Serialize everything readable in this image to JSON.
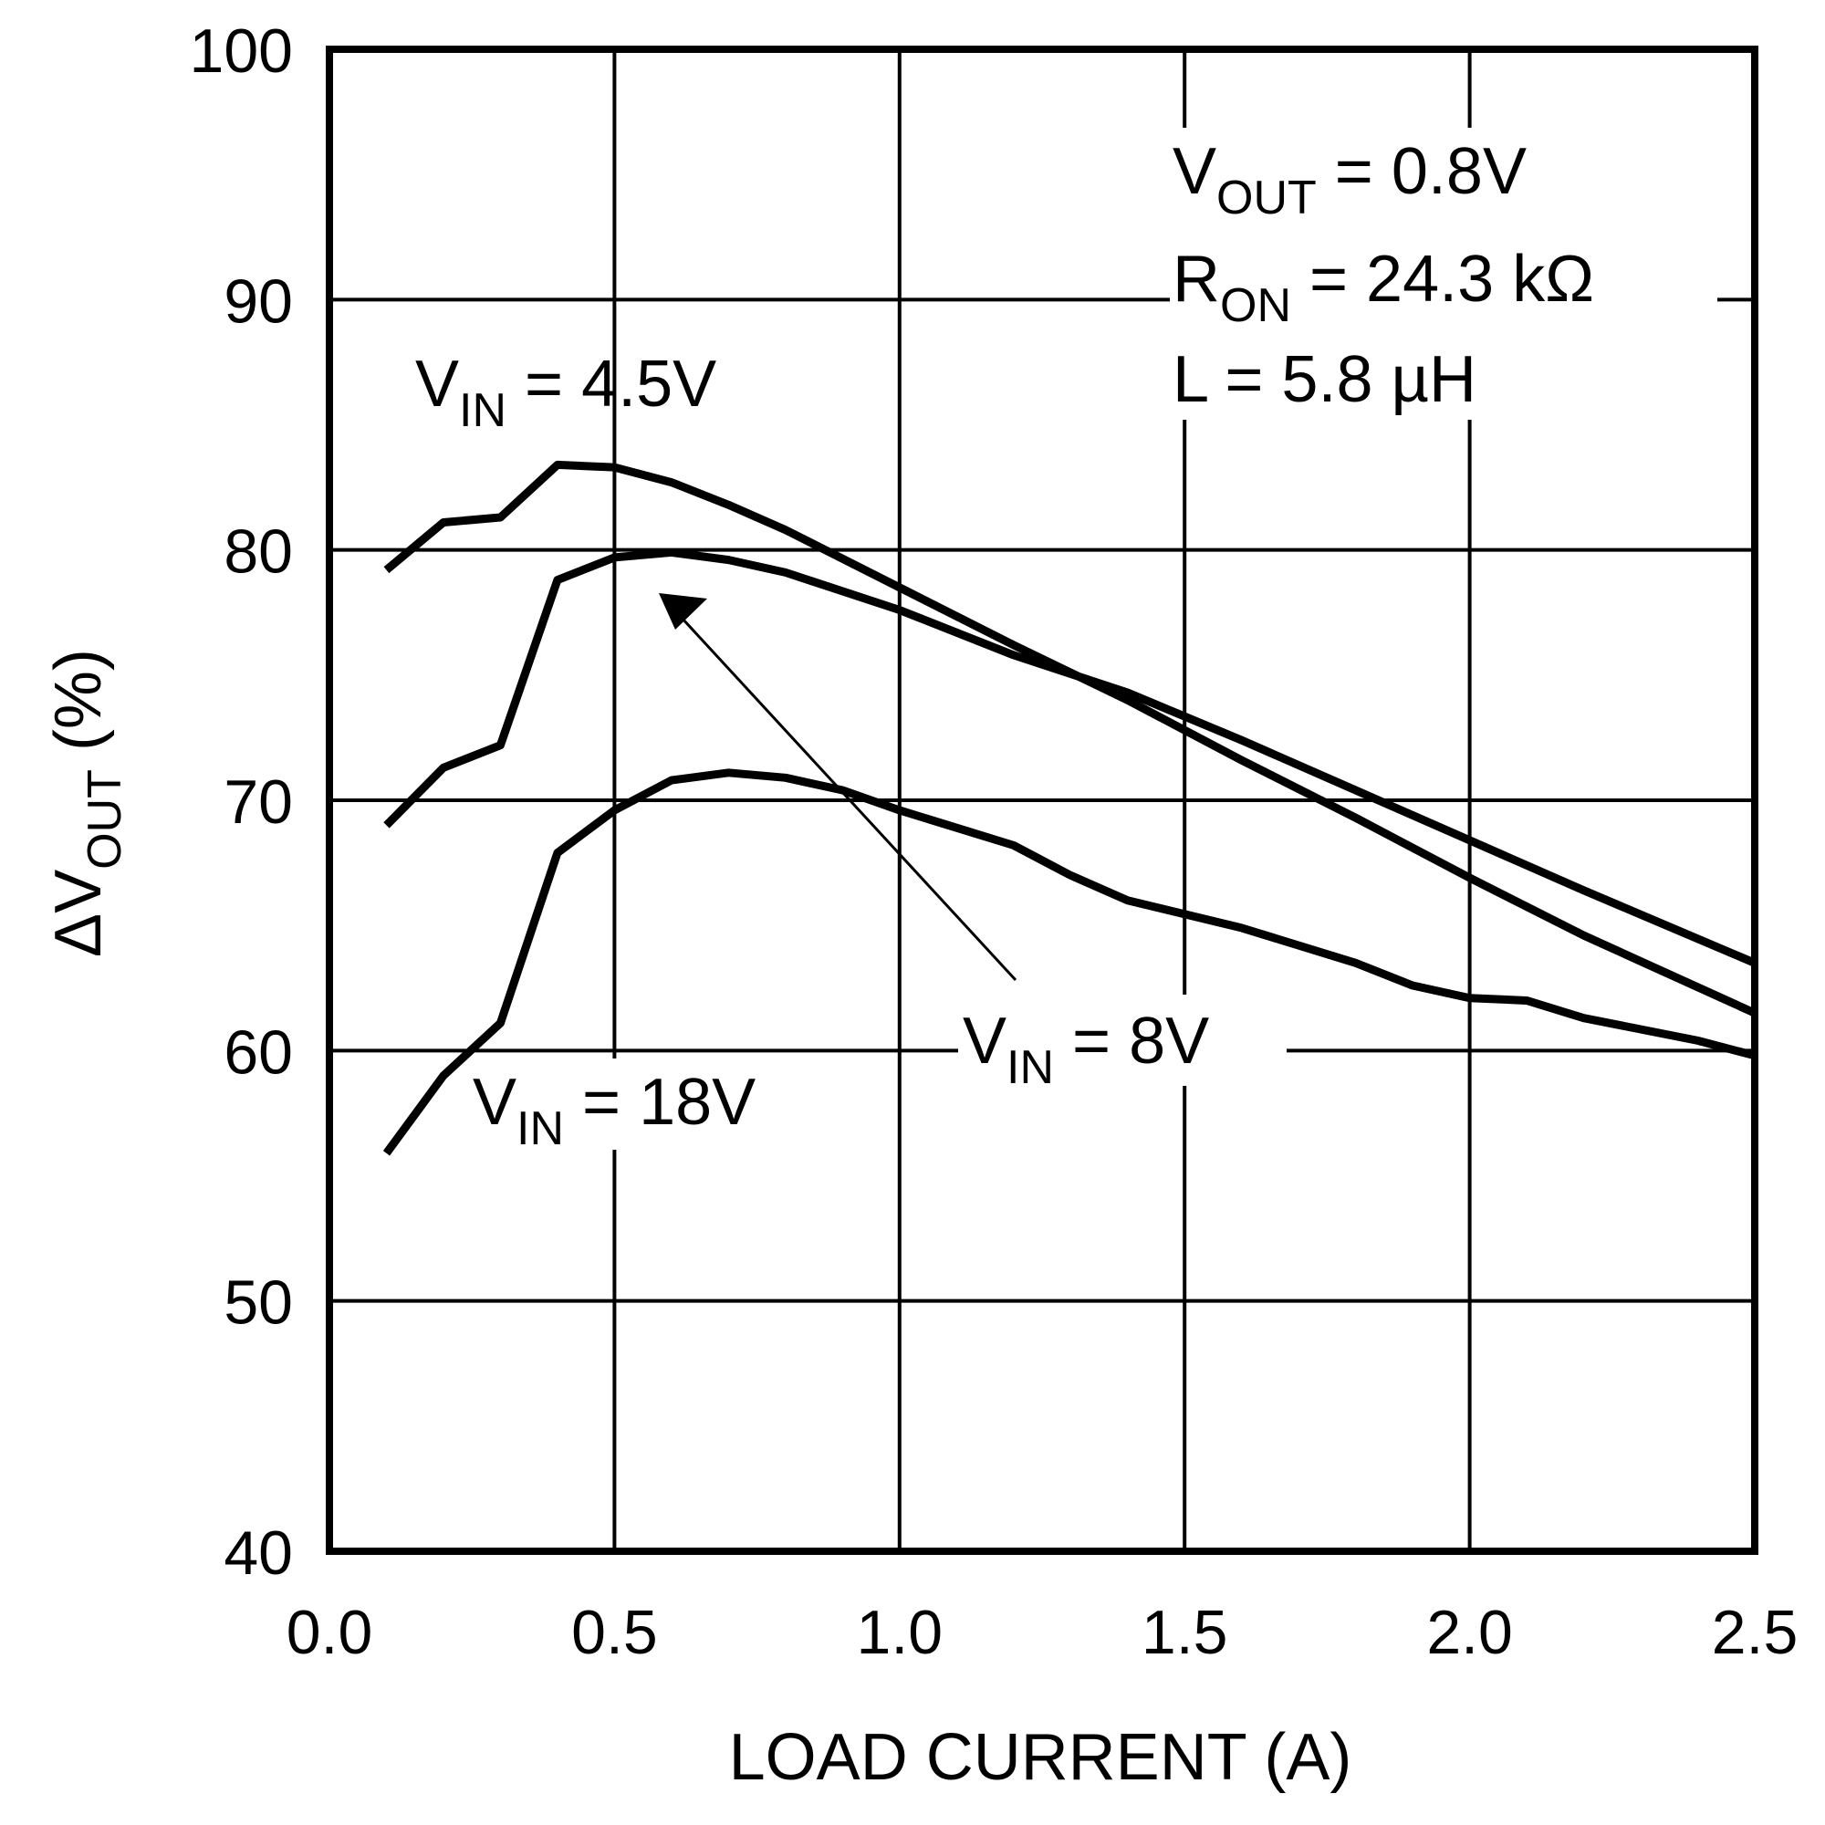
{
  "chart_data": {
    "type": "line",
    "xlabel": "LOAD CURRENT (A)",
    "ylabel": {
      "prefix": "ΔV",
      "sub": "OUT",
      "suffix": " (%)"
    },
    "xlim": [
      0.0,
      2.5
    ],
    "ylim": [
      40,
      100
    ],
    "xticks": [
      "0.0",
      "0.5",
      "1.0",
      "1.5",
      "2.0",
      "2.5"
    ],
    "yticks": [
      "40",
      "50",
      "60",
      "70",
      "80",
      "90",
      "100"
    ],
    "grid": true,
    "line_color": "#000000",
    "conditions": [
      {
        "main": "V",
        "sub": "OUT",
        "rest": " = 0.8V"
      },
      {
        "main": "R",
        "sub": "ON",
        "rest": " = 24.3 kΩ"
      },
      {
        "main": "L = 5.8 µH",
        "sub": "",
        "rest": ""
      }
    ],
    "series": [
      {
        "name": {
          "main": "V",
          "sub": "IN",
          "rest": " = 4.5V"
        },
        "x": [
          0.1,
          0.2,
          0.3,
          0.4,
          0.5,
          0.6,
          0.7,
          0.8,
          1.0,
          1.2,
          1.4,
          1.6,
          1.8,
          2.0,
          2.2,
          2.5
        ],
        "y": [
          79.2,
          81.1,
          81.3,
          83.4,
          83.3,
          82.7,
          81.8,
          80.8,
          78.5,
          76.2,
          74.0,
          71.6,
          69.3,
          66.9,
          64.6,
          61.5
        ]
      },
      {
        "name": {
          "main": "V",
          "sub": "IN",
          "rest": " = 8V"
        },
        "x": [
          0.1,
          0.2,
          0.3,
          0.4,
          0.5,
          0.6,
          0.7,
          0.8,
          1.0,
          1.2,
          1.4,
          1.6,
          1.8,
          2.0,
          2.2,
          2.5
        ],
        "y": [
          69.0,
          71.3,
          72.2,
          78.8,
          79.7,
          79.9,
          79.6,
          79.1,
          77.6,
          75.8,
          74.3,
          72.4,
          70.4,
          68.4,
          66.4,
          63.5
        ]
      },
      {
        "name": {
          "main": "V",
          "sub": "IN",
          "rest": " = 18V"
        },
        "x": [
          0.1,
          0.2,
          0.3,
          0.4,
          0.5,
          0.6,
          0.7,
          0.8,
          0.9,
          1.0,
          1.2,
          1.3,
          1.4,
          1.6,
          1.8,
          1.9,
          2.0,
          2.1,
          2.2,
          2.4,
          2.5
        ],
        "y": [
          55.9,
          59.0,
          61.1,
          67.9,
          69.6,
          70.8,
          71.1,
          70.9,
          70.4,
          69.6,
          68.2,
          67.0,
          66.0,
          64.9,
          63.5,
          62.6,
          62.1,
          62.0,
          61.3,
          60.4,
          59.8
        ]
      }
    ]
  }
}
